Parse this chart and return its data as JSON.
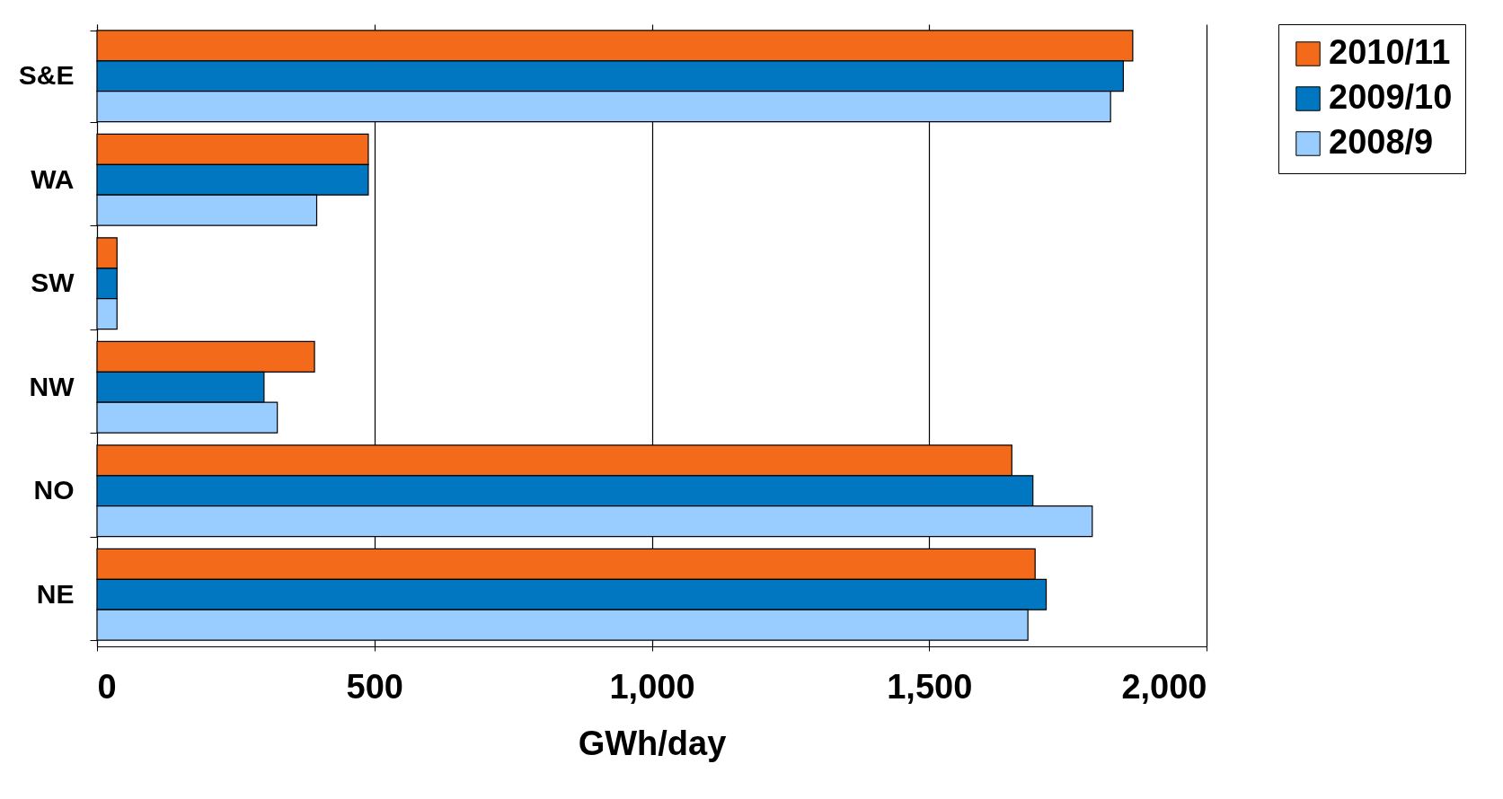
{
  "chart_data": {
    "type": "bar",
    "orientation": "horizontal",
    "xlabel": "GWh/day",
    "categories": [
      "S&E",
      "WA",
      "SW",
      "NW",
      "NO",
      "NE"
    ],
    "series": [
      {
        "name": "2010/11",
        "color": "#f36a1a",
        "values": [
          1867,
          489,
          36,
          392,
          1649,
          1691
        ]
      },
      {
        "name": "2009/10",
        "color": "#0077c0",
        "values": [
          1850,
          489,
          36,
          301,
          1687,
          1711
        ]
      },
      {
        "name": "2008/9",
        "color": "#99ccff",
        "values": [
          1827,
          396,
          36,
          325,
          1794,
          1678
        ]
      }
    ],
    "xlim": [
      0,
      2000
    ],
    "xticks": [
      0,
      {
        "value": 500,
        "label": "500"
      },
      {
        "value": 1000,
        "label": "1,000"
      },
      {
        "value": 1500,
        "label": "1,500"
      },
      {
        "value": 2000,
        "label": "2,000"
      }
    ],
    "grid": "x",
    "legend": "right"
  }
}
